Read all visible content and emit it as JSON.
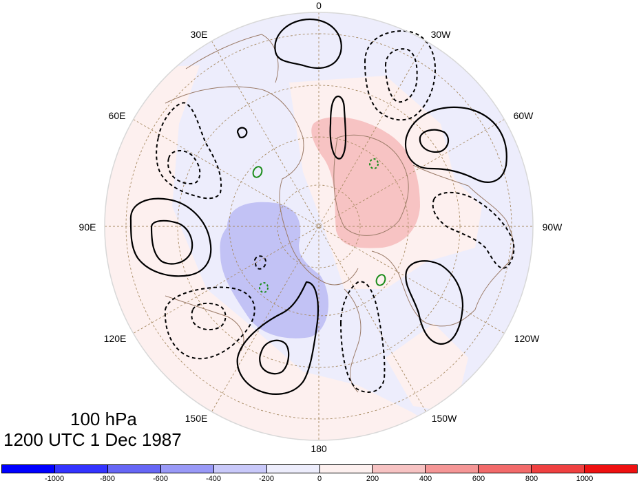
{
  "map": {
    "projection": "north-polar-stereographic",
    "longitude_labels": [
      "0",
      "30W",
      "60W",
      "90W",
      "120W",
      "150W",
      "180",
      "150E",
      "120E",
      "90E",
      "60E",
      "30E"
    ],
    "caption_level": "100 hPa",
    "caption_time": "1200 UTC 1 Dec 1987",
    "fill_colors": {
      "neg_strong": "#c2c2f5",
      "neg_weak": "#ededfc",
      "pos_weak": "#fdf0ef",
      "pos_strong": "#f7c3c3",
      "coast": "#9b7b68",
      "grid": "#a78a62",
      "pos_contour": "#000000",
      "neg_contour": "#000000",
      "extra_contour": "#1a8c1a"
    }
  },
  "colorbar": {
    "ticks": [
      "-1000",
      "-800",
      "-600",
      "-400",
      "-200",
      "0",
      "200",
      "400",
      "600",
      "800",
      "1000"
    ],
    "colors": [
      "#0000ff",
      "#3333ff",
      "#6666f5",
      "#9999f7",
      "#c9c9fa",
      "#ededfc",
      "#fdf0ef",
      "#f7c3c3",
      "#f59696",
      "#f26a6a",
      "#ef4040",
      "#ee1111"
    ]
  }
}
